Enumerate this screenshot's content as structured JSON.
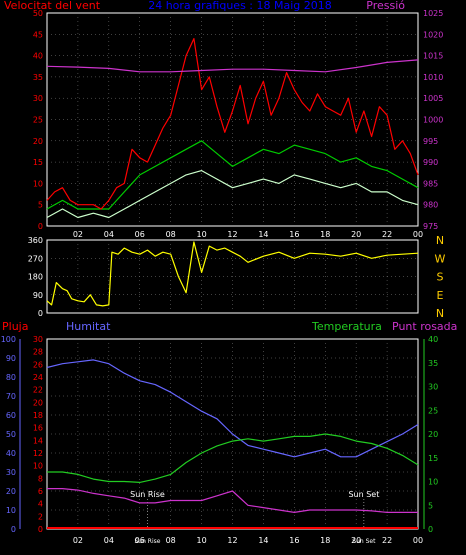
{
  "header": {
    "left_label": "Velocitat del vent",
    "title": "24 hora grafiques : 18 Maig 2018",
    "right_label": "Pressió"
  },
  "footer": {
    "left_labels": [
      "Pluja",
      "Humitat"
    ],
    "right_labels": [
      "Temperatura",
      "Punt rosada"
    ]
  },
  "colors": {
    "background": "#000000",
    "plot_bg": "#000000",
    "frame": "#ffffff",
    "grid": "#808080",
    "red_axis": "#ff0000",
    "pressure": "#cc33cc",
    "wind_gust": "#ff0000",
    "wind_avg": "#00cc00",
    "wind_speed": "#ccffcc",
    "direction": "#ffff00",
    "rain": "#ff0000",
    "humidity": "#6666ff",
    "temperature": "#22cc22",
    "dewpoint": "#cc33cc",
    "title": "#0000ff",
    "compass_text": "#ffcc00"
  },
  "chart_data": [
    {
      "type": "line",
      "panel": "wind-pressure",
      "x_tick_labels": [
        "02",
        "04",
        "06",
        "08",
        "10",
        "12",
        "14",
        "16",
        "18",
        "20",
        "22",
        "00"
      ],
      "y_left_ticks": [
        0,
        5,
        10,
        15,
        20,
        25,
        30,
        35,
        40,
        45,
        50
      ],
      "y_right_ticks": [
        975,
        980,
        985,
        990,
        995,
        1000,
        1005,
        1010,
        1015,
        1020,
        1025
      ],
      "ylim_left": [
        0,
        50
      ],
      "ylim_right": [
        975,
        1025
      ],
      "x_range_hours": [
        0,
        24
      ],
      "series": [
        {
          "name": "Pressió",
          "axis": "right",
          "x": [
            0,
            2,
            4,
            6,
            8,
            10,
            12,
            14,
            16,
            18,
            20,
            22,
            24
          ],
          "values": [
            1012.5,
            1012.3,
            1012,
            1011.2,
            1011.2,
            1011.5,
            1011.8,
            1011.8,
            1011.5,
            1011.2,
            1012.2,
            1013.4,
            1014
          ]
        },
        {
          "axis": "left",
          "x": [
            0,
            0.5,
            1,
            1.5,
            2,
            3,
            3.5,
            4,
            4.5,
            5,
            5.5,
            6,
            6.5,
            7,
            7.5,
            8,
            8.5,
            9,
            9.5,
            10,
            10.5,
            11,
            11.5,
            12,
            12.5,
            13,
            13.5,
            14,
            14.5,
            15,
            15.5,
            16,
            16.5,
            17,
            17.5,
            18,
            18.5,
            19,
            19.5,
            20,
            20.5,
            21,
            21.5,
            22,
            22.5,
            23,
            23.5,
            24
          ],
          "values": [
            6,
            8,
            9,
            6,
            5,
            5,
            4,
            6,
            9,
            10,
            18,
            16,
            15,
            19,
            23,
            26,
            33,
            40,
            44,
            32,
            35,
            28,
            22,
            27,
            33,
            24,
            30,
            34,
            26,
            30,
            36,
            32,
            29,
            27,
            31,
            28,
            27,
            26,
            30,
            22,
            27,
            21,
            28,
            26,
            18,
            20,
            17,
            12
          ]
        },
        {
          "axis": "left",
          "x": [
            0,
            1,
            2,
            3,
            4,
            4.5,
            5,
            6,
            7,
            8,
            9,
            10,
            11,
            12,
            13,
            14,
            15,
            16,
            17,
            18,
            19,
            20,
            21,
            22,
            23,
            24
          ],
          "values": [
            4,
            6,
            4,
            4,
            4,
            6,
            8,
            12,
            14,
            16,
            18,
            20,
            17,
            14,
            16,
            18,
            17,
            19,
            18,
            17,
            15,
            16,
            14,
            13,
            11,
            9
          ]
        },
        {
          "axis": "left",
          "x": [
            0,
            1,
            2,
            3,
            4,
            5,
            6,
            7,
            8,
            9,
            10,
            11,
            12,
            13,
            14,
            15,
            16,
            17,
            18,
            19,
            20,
            21,
            22,
            23,
            24
          ],
          "values": [
            2,
            4,
            2,
            3,
            2,
            4,
            6,
            8,
            10,
            12,
            13,
            11,
            9,
            10,
            11,
            10,
            12,
            11,
            10,
            9,
            10,
            8,
            8,
            6,
            5
          ]
        }
      ]
    },
    {
      "type": "line",
      "panel": "wind-direction",
      "y_ticks": [
        0,
        90,
        180,
        270,
        360
      ],
      "compass_letters": [
        "N",
        "W",
        "S",
        "E",
        "N"
      ],
      "ylim": [
        0,
        360
      ],
      "x_range_hours": [
        0,
        24
      ],
      "series": [
        {
          "x": [
            0,
            0.3,
            0.6,
            1,
            1.3,
            1.6,
            2,
            2.4,
            2.8,
            3.2,
            3.6,
            4,
            4.2,
            4.6,
            5,
            5.5,
            6,
            6.5,
            7,
            7.5,
            8,
            8.5,
            9,
            9.5,
            10,
            10.5,
            11,
            11.5,
            12,
            12.5,
            13,
            14,
            15,
            16,
            17,
            18,
            19,
            20,
            21,
            22,
            23,
            24
          ],
          "values": [
            60,
            40,
            150,
            120,
            110,
            70,
            60,
            55,
            90,
            40,
            35,
            40,
            300,
            290,
            320,
            300,
            290,
            310,
            280,
            300,
            290,
            180,
            100,
            350,
            200,
            330,
            310,
            320,
            300,
            280,
            250,
            280,
            300,
            270,
            295,
            290,
            280,
            295,
            270,
            285,
            290,
            295
          ]
        }
      ]
    },
    {
      "type": "line",
      "panel": "humidity-temperature",
      "x_tick_labels": [
        "02",
        "04",
        "06",
        "08",
        "10",
        "12",
        "14",
        "16",
        "18",
        "20",
        "22",
        "00"
      ],
      "y_left_ticks_pluja": [
        0,
        2,
        4,
        6,
        8,
        10,
        12,
        14,
        16,
        18,
        20,
        22,
        24,
        26,
        28,
        30
      ],
      "y_left_ticks_humitat": [
        0,
        10,
        20,
        30,
        40,
        50,
        60,
        70,
        80,
        90,
        100
      ],
      "y_right_ticks": [
        0,
        5,
        10,
        15,
        20,
        25,
        30,
        35,
        40
      ],
      "ylim_humitat": [
        0,
        100
      ],
      "ylim_temperature": [
        0,
        40
      ],
      "x_range_hours": [
        0,
        24
      ],
      "annotations": [
        {
          "text": "Sun Rise",
          "x": 6.5
        },
        {
          "text": "Sun Set",
          "x": 20.5
        }
      ],
      "series": [
        {
          "name": "Humitat",
          "axis": "humidity",
          "x": [
            0,
            1,
            2,
            3,
            4,
            5,
            6,
            7,
            8,
            9,
            10,
            11,
            12,
            13,
            14,
            15,
            16,
            17,
            18,
            19,
            20,
            21,
            22,
            23,
            24
          ],
          "values": [
            85,
            87,
            88,
            89,
            87,
            82,
            78,
            76,
            72,
            67,
            62,
            58,
            50,
            44,
            42,
            40,
            38,
            40,
            42,
            38,
            38,
            42,
            46,
            50,
            55
          ]
        },
        {
          "name": "Temperatura",
          "axis": "temperature",
          "x": [
            0,
            1,
            2,
            3,
            4,
            5,
            6,
            7,
            8,
            9,
            10,
            11,
            12,
            13,
            14,
            15,
            16,
            17,
            18,
            19,
            20,
            21,
            22,
            23,
            24
          ],
          "values": [
            12,
            12,
            11.5,
            10.5,
            10,
            10,
            9.8,
            10.5,
            11.5,
            14,
            16,
            17.5,
            18.5,
            19,
            18.5,
            19,
            19.5,
            19.5,
            20,
            19.5,
            18.5,
            18,
            17,
            15.5,
            13.5
          ]
        },
        {
          "name": "Punt rosada",
          "axis": "temperature",
          "x": [
            0,
            1,
            2,
            3,
            4,
            5,
            6,
            7,
            8,
            9,
            10,
            11,
            12,
            13,
            14,
            15,
            16,
            17,
            18,
            19,
            20,
            21,
            22,
            23,
            24
          ],
          "values": [
            8.5,
            8.5,
            8.2,
            7.5,
            7,
            6.5,
            5.5,
            5.5,
            6,
            6,
            6,
            7,
            8,
            5,
            4.5,
            4,
            3.5,
            4,
            4,
            4,
            4,
            3.8,
            3.5,
            3.5,
            3.5
          ]
        },
        {
          "name": "Pluja",
          "axis": "rain",
          "x": [
            0,
            24
          ],
          "values": [
            0,
            0
          ]
        }
      ]
    }
  ]
}
